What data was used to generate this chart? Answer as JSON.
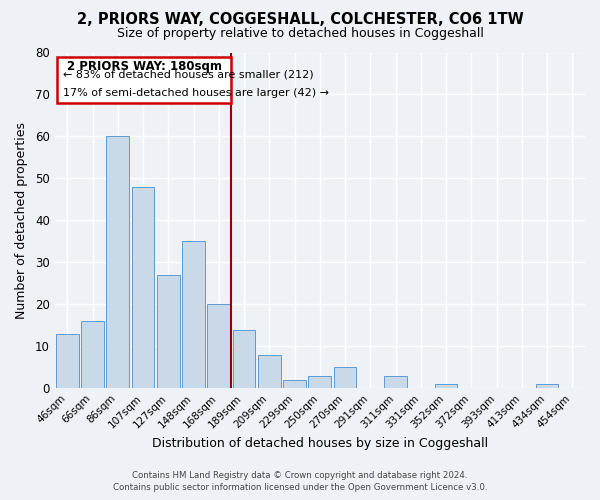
{
  "title": "2, PRIORS WAY, COGGESHALL, COLCHESTER, CO6 1TW",
  "subtitle": "Size of property relative to detached houses in Coggeshall",
  "xlabel": "Distribution of detached houses by size in Coggeshall",
  "ylabel": "Number of detached properties",
  "bar_labels": [
    "46sqm",
    "66sqm",
    "86sqm",
    "107sqm",
    "127sqm",
    "148sqm",
    "168sqm",
    "189sqm",
    "209sqm",
    "229sqm",
    "250sqm",
    "270sqm",
    "291sqm",
    "311sqm",
    "331sqm",
    "352sqm",
    "372sqm",
    "393sqm",
    "413sqm",
    "434sqm",
    "454sqm"
  ],
  "bar_values": [
    13,
    16,
    60,
    48,
    27,
    35,
    20,
    14,
    8,
    2,
    3,
    5,
    0,
    3,
    0,
    1,
    0,
    0,
    0,
    1,
    0
  ],
  "bar_color": "#c9d9e8",
  "bar_edge_color": "#5b9bd5",
  "ylim": [
    0,
    80
  ],
  "yticks": [
    0,
    10,
    20,
    30,
    40,
    50,
    60,
    70,
    80
  ],
  "vline_color": "#990000",
  "annotation_title": "2 PRIORS WAY: 180sqm",
  "annotation_line1": "← 83% of detached houses are smaller (212)",
  "annotation_line2": "17% of semi-detached houses are larger (42) →",
  "annotation_box_edge_color": "#cc0000",
  "footer_line1": "Contains HM Land Registry data © Crown copyright and database right 2024.",
  "footer_line2": "Contains public sector information licensed under the Open Government Licence v3.0.",
  "bg_color": "#eef2f7",
  "grid_color": "#d0d8e4"
}
